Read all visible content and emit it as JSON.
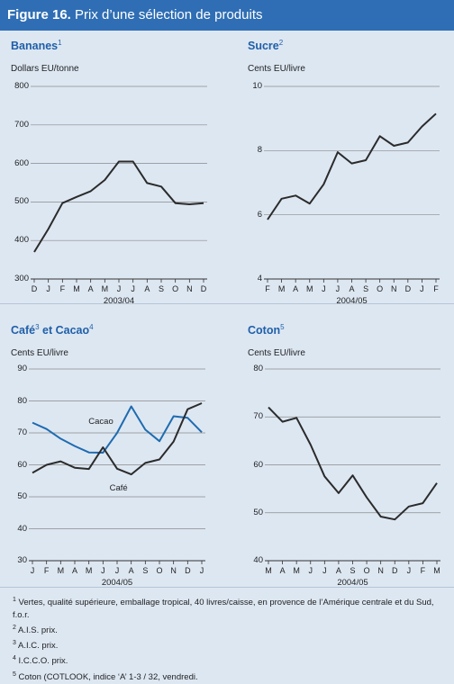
{
  "header": {
    "figure_label": "Figure 16.",
    "title": "Prix d’une sélection de produits"
  },
  "colors": {
    "header_bg": "#2f6eb4",
    "panel_title": "#1f5fa8",
    "series_dark": "#2b2b2b",
    "series_blue": "#1f6bb0",
    "background": "#dde7f2"
  },
  "chart_data": [
    {
      "type": "line",
      "title": "Bananes",
      "title_note": "1",
      "ylabel": "Dollars EU/tonne",
      "ylim": [
        300,
        800
      ],
      "yticks": [
        "300",
        "400",
        "500",
        "600",
        "700",
        "800"
      ],
      "categories": [
        "D",
        "J",
        "F",
        "M",
        "A",
        "M",
        "J",
        "J",
        "A",
        "S",
        "O",
        "N",
        "D"
      ],
      "period_label": "2003/04",
      "series": [
        {
          "values": [
            370,
            430,
            497,
            513,
            528,
            557,
            605,
            605,
            549,
            540,
            497,
            494,
            497
          ]
        }
      ]
    },
    {
      "type": "line",
      "title": "Sucre",
      "title_note": "2",
      "ylabel": "Cents EU/livre",
      "ylim": [
        4,
        10
      ],
      "yticks": [
        "4",
        "6",
        "8",
        "10"
      ],
      "categories": [
        "F",
        "M",
        "A",
        "M",
        "J",
        "J",
        "A",
        "S",
        "O",
        "N",
        "D",
        "J",
        "F"
      ],
      "period_label": "2004/05",
      "series": [
        {
          "values": [
            5.85,
            6.5,
            6.6,
            6.35,
            6.95,
            7.95,
            7.6,
            7.7,
            8.45,
            8.15,
            8.25,
            8.75,
            9.15
          ]
        }
      ]
    },
    {
      "type": "line",
      "title": "Café",
      "title_note": "3",
      "title_suffix": " et Cacao",
      "title_note2": "4",
      "ylabel": "Cents EU/livre",
      "ylim": [
        30,
        90
      ],
      "yticks": [
        "30",
        "40",
        "50",
        "60",
        "70",
        "80",
        "90"
      ],
      "categories": [
        "J",
        "F",
        "M",
        "A",
        "M",
        "J",
        "J",
        "A",
        "S",
        "O",
        "N",
        "D",
        "J"
      ],
      "period_label": "2004/05",
      "series": [
        {
          "name": "Cacao",
          "values": [
            73.2,
            71.2,
            68.2,
            65.9,
            63.9,
            63.8,
            70.0,
            78.3,
            71.0,
            67.4,
            75.2,
            74.7,
            70.2
          ]
        },
        {
          "name": "Café",
          "values": [
            57.5,
            60.0,
            61.1,
            59.1,
            58.7,
            65.5,
            58.8,
            57.0,
            60.6,
            61.7,
            67.3,
            77.4,
            79.3
          ]
        }
      ]
    },
    {
      "type": "line",
      "title": "Coton",
      "title_note": "5",
      "ylabel": "Cents EU/livre",
      "ylim": [
        40,
        80
      ],
      "yticks": [
        "40",
        "50",
        "60",
        "70",
        "80"
      ],
      "categories": [
        "M",
        "A",
        "M",
        "J",
        "J",
        "A",
        "S",
        "O",
        "N",
        "D",
        "J",
        "F",
        "M"
      ],
      "period_label": "2004/05",
      "series": [
        {
          "values": [
            72.0,
            69.0,
            69.8,
            64.2,
            57.6,
            54.1,
            57.8,
            53.2,
            49.2,
            48.6,
            51.3,
            52.0,
            56.2
          ]
        }
      ]
    }
  ],
  "footnotes": [
    {
      "num": "1",
      "text": "Vertes, qualité supérieure, emballage tropical, 40 livres/caisse, en provence de l’Amérique centrale et du Sud, f.o.r."
    },
    {
      "num": "2",
      "text": "A.I.S. prix."
    },
    {
      "num": "3",
      "text": "A.I.C. prix."
    },
    {
      "num": "4",
      "text": "I.C.C.O. prix."
    },
    {
      "num": "5",
      "text": "Coton (COTLOOK, indice ‘A’ 1-3 / 32, vendredi."
    }
  ]
}
